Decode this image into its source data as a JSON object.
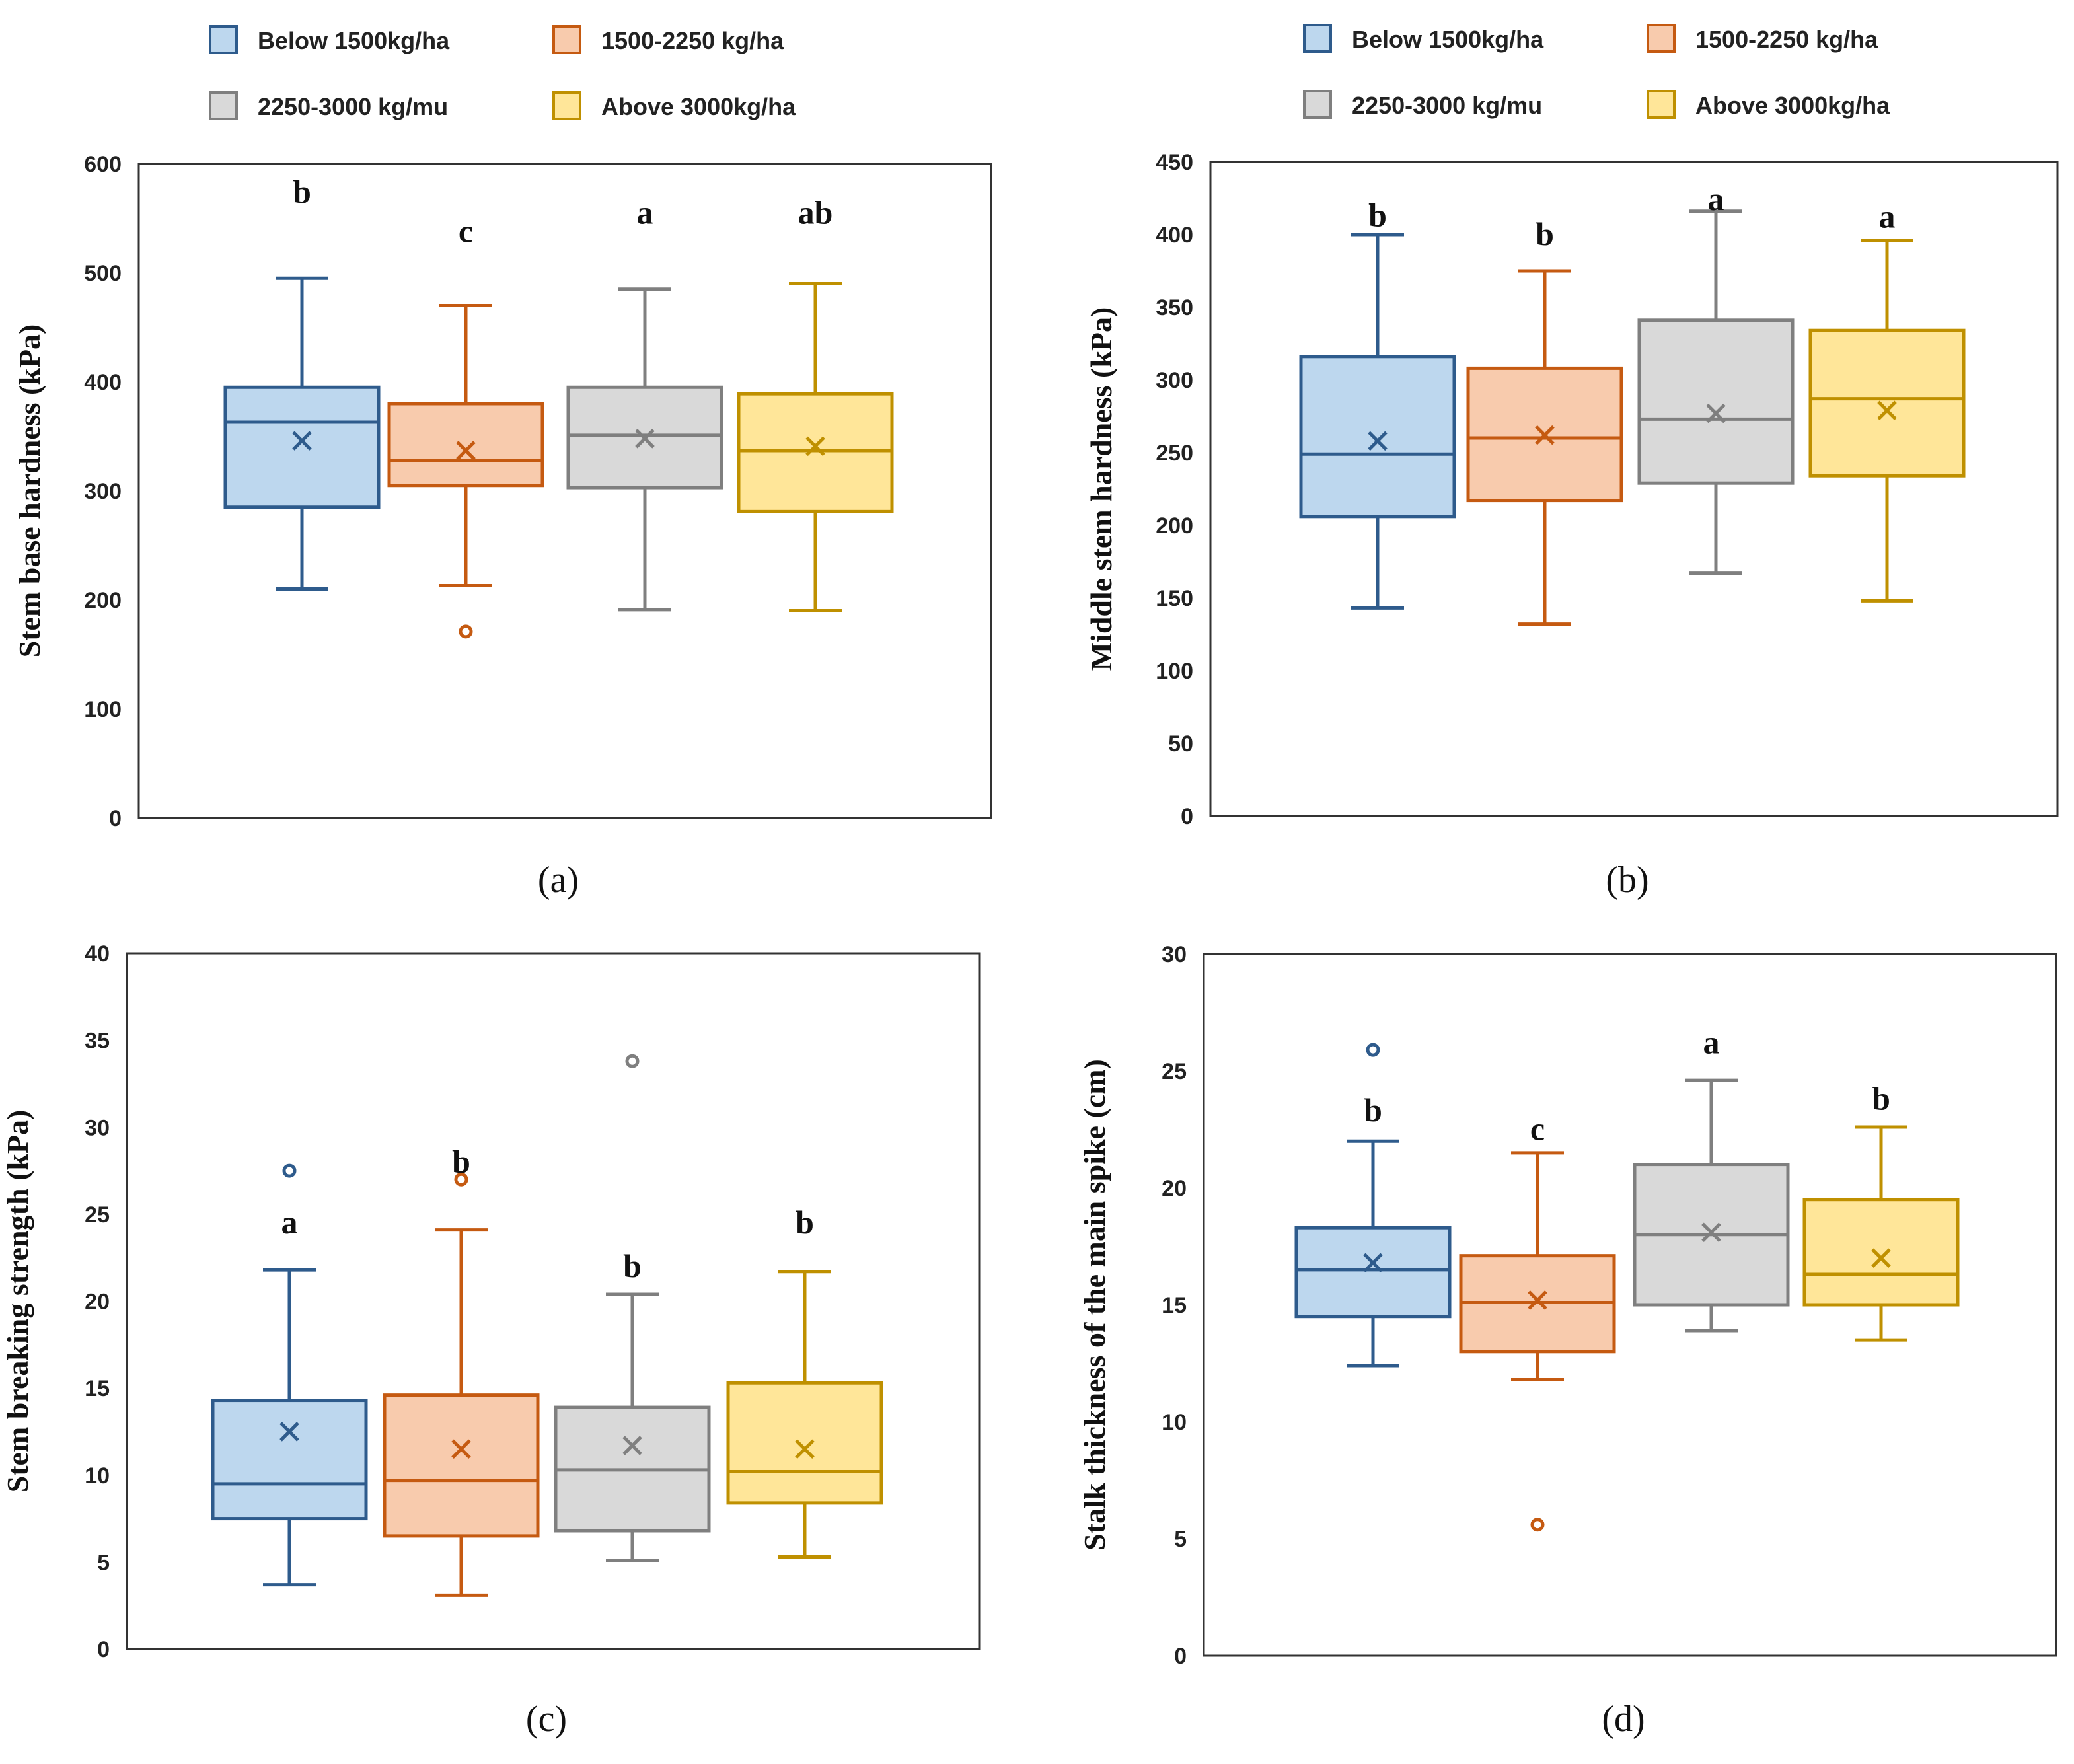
{
  "legend": [
    {
      "label": "Below 1500kg/ha",
      "stroke": "#2E5B8C",
      "fill": "#BDD7EE"
    },
    {
      "label": "1500-2250 kg/ha",
      "stroke": "#C55A11",
      "fill": "#F8CBAD"
    },
    {
      "label": "2250-3000 kg/mu",
      "stroke": "#7F7F7F",
      "fill": "#D9D9D9"
    },
    {
      "label": "Above 3000kg/ha",
      "stroke": "#BF9000",
      "fill": "#FFE699"
    }
  ],
  "chart_data": [
    {
      "type": "box",
      "panel": "(a)",
      "ylabel": "Stem base hardness (kPa)",
      "ylim": [
        0,
        600
      ],
      "yticks": [
        0,
        100,
        200,
        300,
        400,
        500,
        600
      ],
      "series": [
        {
          "name": "Below 1500kg/ha",
          "min": 210,
          "q1": 285,
          "median": 363,
          "q3": 395,
          "max": 495,
          "mean": 346,
          "outliers": [],
          "letter": "b",
          "letter_y": 574
        },
        {
          "name": "1500-2250 kg/ha",
          "min": 213,
          "q1": 305,
          "median": 328,
          "q3": 380,
          "max": 470,
          "mean": 337,
          "outliers": [
            171
          ],
          "letter": "c",
          "letter_y": 538
        },
        {
          "name": "2250-3000 kg/mu",
          "min": 191,
          "q1": 303,
          "median": 351,
          "q3": 395,
          "max": 485,
          "mean": 348,
          "outliers": [],
          "letter": "a",
          "letter_y": 555
        },
        {
          "name": "Above 3000kg/ha",
          "min": 190,
          "q1": 281,
          "median": 337,
          "q3": 389,
          "max": 490,
          "mean": 341,
          "outliers": [],
          "letter": "ab",
          "letter_y": 555
        }
      ]
    },
    {
      "type": "box",
      "panel": "(b)",
      "ylabel": "Middle  stem hardness (kPa)",
      "ylim": [
        0,
        450
      ],
      "yticks": [
        0,
        50,
        100,
        150,
        200,
        250,
        300,
        350,
        400,
        450
      ],
      "series": [
        {
          "name": "Below 1500kg/ha",
          "min": 143,
          "q1": 206,
          "median": 249,
          "q3": 316,
          "max": 400,
          "mean": 258,
          "outliers": [],
          "letter": "b",
          "letter_y": 413
        },
        {
          "name": "1500-2250 kg/ha",
          "min": 132,
          "q1": 217,
          "median": 260,
          "q3": 308,
          "max": 375,
          "mean": 262,
          "outliers": [],
          "letter": "b",
          "letter_y": 400
        },
        {
          "name": "2250-3000 kg/mu",
          "min": 167,
          "q1": 229,
          "median": 273,
          "q3": 341,
          "max": 416,
          "mean": 277,
          "outliers": [],
          "letter": "a",
          "letter_y": 424
        },
        {
          "name": "Above 3000kg/ha",
          "min": 148,
          "q1": 234,
          "median": 287,
          "q3": 334,
          "max": 396,
          "mean": 279,
          "outliers": [],
          "letter": "a",
          "letter_y": 412
        }
      ]
    },
    {
      "type": "box",
      "panel": "(c)",
      "ylabel": "Stem breaking  strength (kPa)",
      "ylim": [
        0,
        40
      ],
      "yticks": [
        0,
        5,
        10,
        15,
        20,
        25,
        30,
        35,
        40
      ],
      "series": [
        {
          "name": "Below 1500kg/ha",
          "min": 3.7,
          "q1": 7.5,
          "median": 9.5,
          "q3": 14.3,
          "max": 21.8,
          "mean": 12.5,
          "outliers": [
            27.5
          ],
          "letter": "a",
          "letter_y": 24.5
        },
        {
          "name": "1500-2250 kg/ha",
          "min": 3.1,
          "q1": 6.5,
          "median": 9.7,
          "q3": 14.6,
          "max": 24.1,
          "mean": 11.5,
          "outliers": [
            27.0
          ],
          "letter": "b",
          "letter_y": 28.0
        },
        {
          "name": "2250-3000 kg/mu",
          "min": 5.1,
          "q1": 6.8,
          "median": 10.3,
          "q3": 13.9,
          "max": 20.4,
          "mean": 11.7,
          "outliers": [
            33.8
          ],
          "letter": "b",
          "letter_y": 22.0
        },
        {
          "name": "Above 3000kg/ha",
          "min": 5.3,
          "q1": 8.4,
          "median": 10.2,
          "q3": 15.3,
          "max": 21.7,
          "mean": 11.5,
          "outliers": [],
          "letter": "b",
          "letter_y": 24.5
        }
      ]
    },
    {
      "type": "box",
      "panel": "(d)",
      "ylabel": "Stalk thickness of the main spike (cm)",
      "ylim": [
        0,
        30
      ],
      "yticks": [
        0,
        5,
        10,
        15,
        20,
        25,
        30
      ],
      "series": [
        {
          "name": "Below 1500kg/ha",
          "min": 12.4,
          "q1": 14.5,
          "median": 16.5,
          "q3": 18.3,
          "max": 22.0,
          "mean": 16.8,
          "outliers": [
            25.9
          ],
          "letter": "b",
          "letter_y": 23.3
        },
        {
          "name": "1500-2250 kg/ha",
          "min": 11.8,
          "q1": 13.0,
          "median": 15.1,
          "q3": 17.1,
          "max": 21.5,
          "mean": 15.2,
          "outliers": [
            5.6
          ],
          "letter": "c",
          "letter_y": 22.5
        },
        {
          "name": "2250-3000 kg/mu",
          "min": 13.9,
          "q1": 15.0,
          "median": 18.0,
          "q3": 21.0,
          "max": 24.6,
          "mean": 18.1,
          "outliers": [],
          "letter": "a",
          "letter_y": 26.2
        },
        {
          "name": "Above 3000kg/ha",
          "min": 13.5,
          "q1": 15.0,
          "median": 16.3,
          "q3": 19.5,
          "max": 22.6,
          "mean": 17.0,
          "outliers": [],
          "letter": "b",
          "letter_y": 23.8
        }
      ]
    }
  ]
}
